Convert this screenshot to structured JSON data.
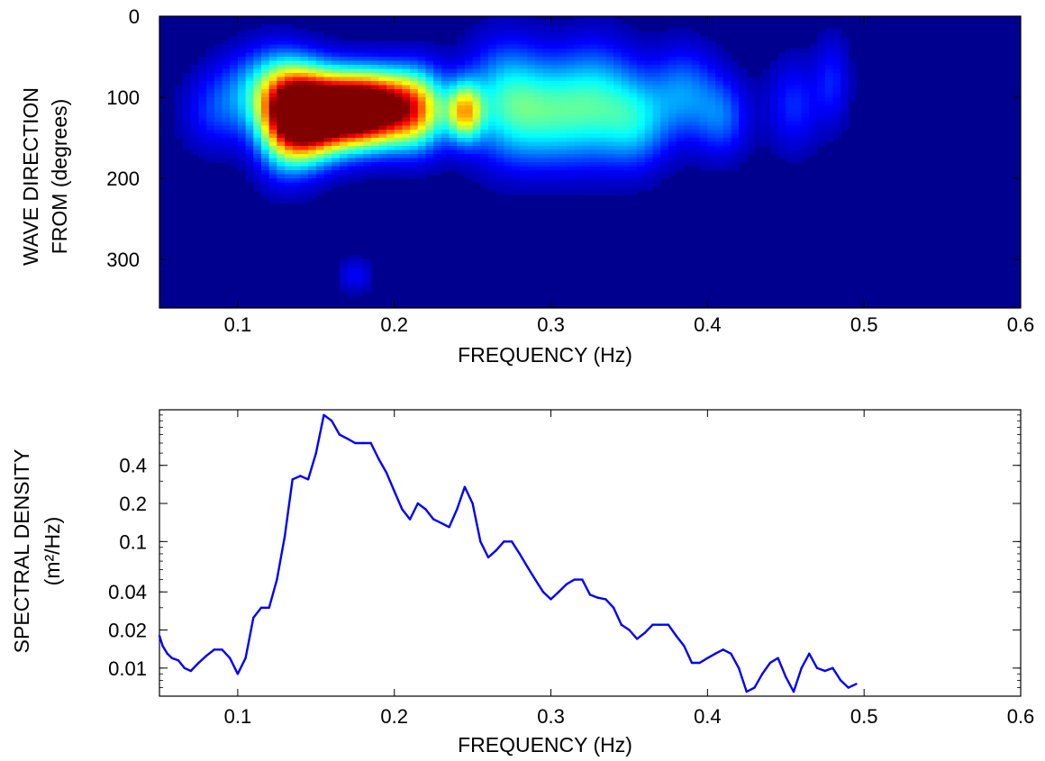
{
  "chart_data": [
    {
      "type": "heatmap",
      "xlabel": "FREQUENCY (Hz)",
      "ylabel_lines": [
        "WAVE DIRECTION",
        "FROM    (degrees)"
      ],
      "xlim": [
        0.05,
        0.6
      ],
      "ylim": [
        360,
        0
      ],
      "y_reversed": true,
      "xticks": [
        {
          "value": 0.1,
          "label": "0.1"
        },
        {
          "value": 0.2,
          "label": "0.2"
        },
        {
          "value": 0.3,
          "label": "0.3"
        },
        {
          "value": 0.4,
          "label": "0.4"
        },
        {
          "value": 0.5,
          "label": "0.5"
        },
        {
          "value": 0.6,
          "label": "0.6"
        }
      ],
      "yticks": [
        {
          "value": 0,
          "label": "0"
        },
        {
          "value": 100,
          "label": "100"
        },
        {
          "value": 200,
          "label": "200"
        },
        {
          "value": 300,
          "label": "300"
        }
      ],
      "colormap": [
        "#00008f",
        "#0000ff",
        "#0080ff",
        "#00ffff",
        "#80ff80",
        "#ffff00",
        "#ff8000",
        "#ff0000",
        "#800000"
      ],
      "background_color": "#00008f",
      "peaks": [
        {
          "f": 0.163,
          "d": 118,
          "sf": 0.022,
          "sd": 32,
          "a": 1.0
        },
        {
          "f": 0.142,
          "d": 125,
          "sf": 0.014,
          "sd": 38,
          "a": 0.72
        },
        {
          "f": 0.188,
          "d": 112,
          "sf": 0.018,
          "sd": 30,
          "a": 0.72
        },
        {
          "f": 0.215,
          "d": 115,
          "sf": 0.014,
          "sd": 35,
          "a": 0.55
        },
        {
          "f": 0.245,
          "d": 118,
          "sf": 0.008,
          "sd": 25,
          "a": 0.55
        },
        {
          "f": 0.127,
          "d": 130,
          "sf": 0.012,
          "sd": 45,
          "a": 0.35
        },
        {
          "f": 0.118,
          "d": 90,
          "sf": 0.02,
          "sd": 35,
          "a": 0.3
        },
        {
          "f": 0.27,
          "d": 105,
          "sf": 0.018,
          "sd": 50,
          "a": 0.34
        },
        {
          "f": 0.3,
          "d": 120,
          "sf": 0.02,
          "sd": 45,
          "a": 0.32
        },
        {
          "f": 0.33,
          "d": 105,
          "sf": 0.018,
          "sd": 50,
          "a": 0.3
        },
        {
          "f": 0.355,
          "d": 130,
          "sf": 0.015,
          "sd": 40,
          "a": 0.27
        },
        {
          "f": 0.385,
          "d": 95,
          "sf": 0.015,
          "sd": 40,
          "a": 0.24
        },
        {
          "f": 0.41,
          "d": 125,
          "sf": 0.012,
          "sd": 35,
          "a": 0.2
        },
        {
          "f": 0.455,
          "d": 110,
          "sf": 0.012,
          "sd": 40,
          "a": 0.16
        },
        {
          "f": 0.48,
          "d": 80,
          "sf": 0.008,
          "sd": 40,
          "a": 0.14
        },
        {
          "f": 0.085,
          "d": 120,
          "sf": 0.015,
          "sd": 35,
          "a": 0.14
        },
        {
          "f": 0.175,
          "d": 320,
          "sf": 0.008,
          "sd": 15,
          "a": 0.12
        }
      ]
    },
    {
      "type": "line",
      "xlabel": "FREQUENCY (Hz)",
      "ylabel_lines": [
        "SPECTRAL DENSITY",
        "(m²/Hz)"
      ],
      "y_scale": "log",
      "xlim": [
        0.05,
        0.6
      ],
      "ylim": [
        0.006,
        1.1
      ],
      "grid": false,
      "xticks": [
        {
          "value": 0.1,
          "label": "0.1"
        },
        {
          "value": 0.2,
          "label": "0.2"
        },
        {
          "value": 0.3,
          "label": "0.3"
        },
        {
          "value": 0.4,
          "label": "0.4"
        },
        {
          "value": 0.5,
          "label": "0.5"
        },
        {
          "value": 0.6,
          "label": "0.6"
        }
      ],
      "yticks": [
        {
          "value": 0.01,
          "label": "0.01"
        },
        {
          "value": 0.02,
          "label": "0.02"
        },
        {
          "value": 0.04,
          "label": "0.04"
        },
        {
          "value": 0.1,
          "label": "0.1"
        },
        {
          "value": 0.2,
          "label": "0.2"
        },
        {
          "value": 0.4,
          "label": "0.4"
        }
      ],
      "series": [
        {
          "color": "#0000ff",
          "x": [
            0.05,
            0.052,
            0.055,
            0.058,
            0.062,
            0.066,
            0.07,
            0.075,
            0.08,
            0.085,
            0.09,
            0.095,
            0.1,
            0.105,
            0.11,
            0.115,
            0.12,
            0.125,
            0.13,
            0.135,
            0.14,
            0.145,
            0.15,
            0.155,
            0.16,
            0.165,
            0.17,
            0.175,
            0.18,
            0.185,
            0.19,
            0.195,
            0.2,
            0.205,
            0.21,
            0.215,
            0.22,
            0.225,
            0.23,
            0.235,
            0.24,
            0.245,
            0.25,
            0.255,
            0.26,
            0.265,
            0.27,
            0.275,
            0.28,
            0.285,
            0.29,
            0.295,
            0.3,
            0.305,
            0.31,
            0.315,
            0.32,
            0.325,
            0.33,
            0.335,
            0.34,
            0.345,
            0.35,
            0.355,
            0.36,
            0.365,
            0.37,
            0.375,
            0.38,
            0.385,
            0.39,
            0.395,
            0.4,
            0.405,
            0.41,
            0.415,
            0.42,
            0.425,
            0.43,
            0.435,
            0.44,
            0.445,
            0.45,
            0.455,
            0.46,
            0.465,
            0.47,
            0.475,
            0.48,
            0.485,
            0.49,
            0.495
          ],
          "y": [
            0.018,
            0.015,
            0.013,
            0.012,
            0.0115,
            0.01,
            0.0095,
            0.011,
            0.0125,
            0.014,
            0.014,
            0.012,
            0.009,
            0.012,
            0.025,
            0.03,
            0.03,
            0.05,
            0.11,
            0.31,
            0.33,
            0.31,
            0.5,
            1.0,
            0.9,
            0.7,
            0.65,
            0.6,
            0.6,
            0.6,
            0.45,
            0.35,
            0.25,
            0.18,
            0.15,
            0.2,
            0.18,
            0.15,
            0.14,
            0.13,
            0.18,
            0.27,
            0.2,
            0.1,
            0.075,
            0.085,
            0.1,
            0.1,
            0.08,
            0.063,
            0.05,
            0.04,
            0.035,
            0.04,
            0.046,
            0.05,
            0.05,
            0.038,
            0.036,
            0.035,
            0.03,
            0.022,
            0.02,
            0.017,
            0.019,
            0.022,
            0.022,
            0.022,
            0.018,
            0.015,
            0.011,
            0.011,
            0.012,
            0.013,
            0.014,
            0.013,
            0.01,
            0.0065,
            0.007,
            0.009,
            0.011,
            0.012,
            0.0085,
            0.0065,
            0.01,
            0.013,
            0.01,
            0.0095,
            0.01,
            0.008,
            0.007,
            0.0075
          ]
        }
      ]
    }
  ]
}
